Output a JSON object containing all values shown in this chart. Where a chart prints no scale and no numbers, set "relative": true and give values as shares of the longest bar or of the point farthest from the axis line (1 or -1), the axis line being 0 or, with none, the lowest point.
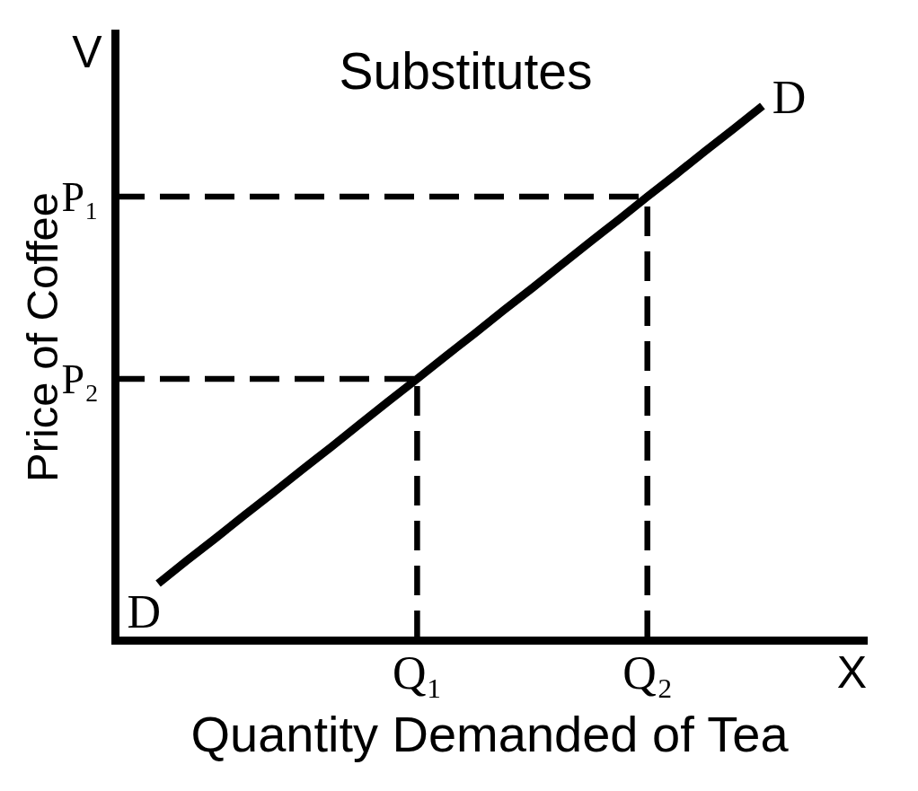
{
  "chart_data": {
    "type": "line",
    "relative": true,
    "title": "Substitutes",
    "xlabel": "Quantity Demanded of Tea",
    "ylabel": "Price of Coffee",
    "categories": [
      null,
      null,
      null,
      null,
      null,
      null,
      null,
      null,
      null,
      null,
      "Q₁",
      null,
      null,
      null,
      null,
      null,
      null,
      null,
      "Q₂",
      null,
      null,
      null,
      null,
      null,
      null,
      null
    ],
    "series": [
      {
        "name": "D",
        "color": "#000000",
        "values": [
          null,
          0.106,
          0.149,
          0.191,
          0.234,
          0.276,
          0.319,
          0.361,
          0.404,
          0.447,
          0.489,
          0.532,
          0.574,
          0.617,
          0.659,
          0.702,
          0.745,
          0.787,
          0.83,
          0.872,
          0.915,
          0.957,
          1,
          null,
          null,
          null
        ]
      }
    ],
    "ref_lines": [
      {
        "axis": "y",
        "value": 0.83,
        "label": "P₁",
        "line_style": "dashed",
        "color": "#000000"
      },
      {
        "axis": "y",
        "value": 0.489,
        "label": "P₂",
        "line_style": "dashed",
        "color": "#000000"
      },
      {
        "axis": "x",
        "value": "Q₁",
        "line_style": "dashed",
        "color": "#000000"
      },
      {
        "axis": "x",
        "value": "Q₂",
        "line_style": "dashed",
        "color": "#000000"
      }
    ],
    "annotations": [
      "V",
      "X"
    ],
    "tick_labels": "x"
  }
}
